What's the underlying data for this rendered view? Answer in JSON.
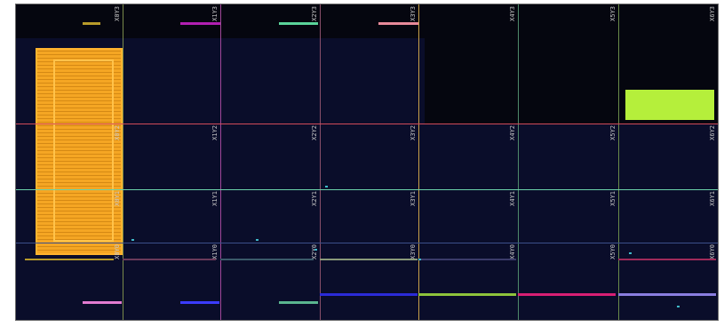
{
  "tiles": [
    {
      "label": "X0Y3",
      "col": 0,
      "row": 0
    },
    {
      "label": "X1Y3",
      "col": 1,
      "row": 0
    },
    {
      "label": "X2Y3",
      "col": 2,
      "row": 0
    },
    {
      "label": "X3Y3",
      "col": 3,
      "row": 0
    },
    {
      "label": "X4Y3",
      "col": 4,
      "row": 0
    },
    {
      "label": "X5Y3",
      "col": 5,
      "row": 0
    },
    {
      "label": "X6Y3",
      "col": 6,
      "row": 0
    },
    {
      "label": "X0Y2",
      "col": 0,
      "row": 1
    },
    {
      "label": "X1Y2",
      "col": 1,
      "row": 1
    },
    {
      "label": "X2Y2",
      "col": 2,
      "row": 1
    },
    {
      "label": "X3Y2",
      "col": 3,
      "row": 1
    },
    {
      "label": "X4Y2",
      "col": 4,
      "row": 1
    },
    {
      "label": "X5Y2",
      "col": 5,
      "row": 1
    },
    {
      "label": "X6Y2",
      "col": 6,
      "row": 1
    },
    {
      "label": "X0Y1",
      "col": 0,
      "row": 2
    },
    {
      "label": "X1Y1",
      "col": 1,
      "row": 2
    },
    {
      "label": "X2Y1",
      "col": 2,
      "row": 2
    },
    {
      "label": "X3Y1",
      "col": 3,
      "row": 2
    },
    {
      "label": "X4Y1",
      "col": 4,
      "row": 2
    },
    {
      "label": "X5Y1",
      "col": 5,
      "row": 2
    },
    {
      "label": "X6Y1",
      "col": 6,
      "row": 2
    },
    {
      "label": "X0Y0",
      "col": 0,
      "row": 3
    },
    {
      "label": "X1Y0",
      "col": 1,
      "row": 3
    },
    {
      "label": "X2Y0",
      "col": 2,
      "row": 3
    },
    {
      "label": "X3Y0",
      "col": 3,
      "row": 3
    },
    {
      "label": "X4Y0",
      "col": 4,
      "row": 3
    },
    {
      "label": "X5Y0",
      "col": 5,
      "row": 3
    },
    {
      "label": "X6Y0",
      "col": 6,
      "row": 3
    }
  ],
  "colors": {
    "background": "#05060f",
    "placed_region": "#0a0d2a",
    "placed_logic": "#f5a623",
    "pblock": "#b5ef3b",
    "grid_line": "#3b4f8a"
  },
  "clock_bar_colors": [
    "#b89b2a",
    "#b21fb2",
    "#5ad49a",
    "#e88a9a",
    "#e27bd1",
    "#3b3bff",
    "#5ab58f",
    "#2b2bd8",
    "#8ec33b",
    "#d81f74",
    "#8a7ee0"
  ]
}
